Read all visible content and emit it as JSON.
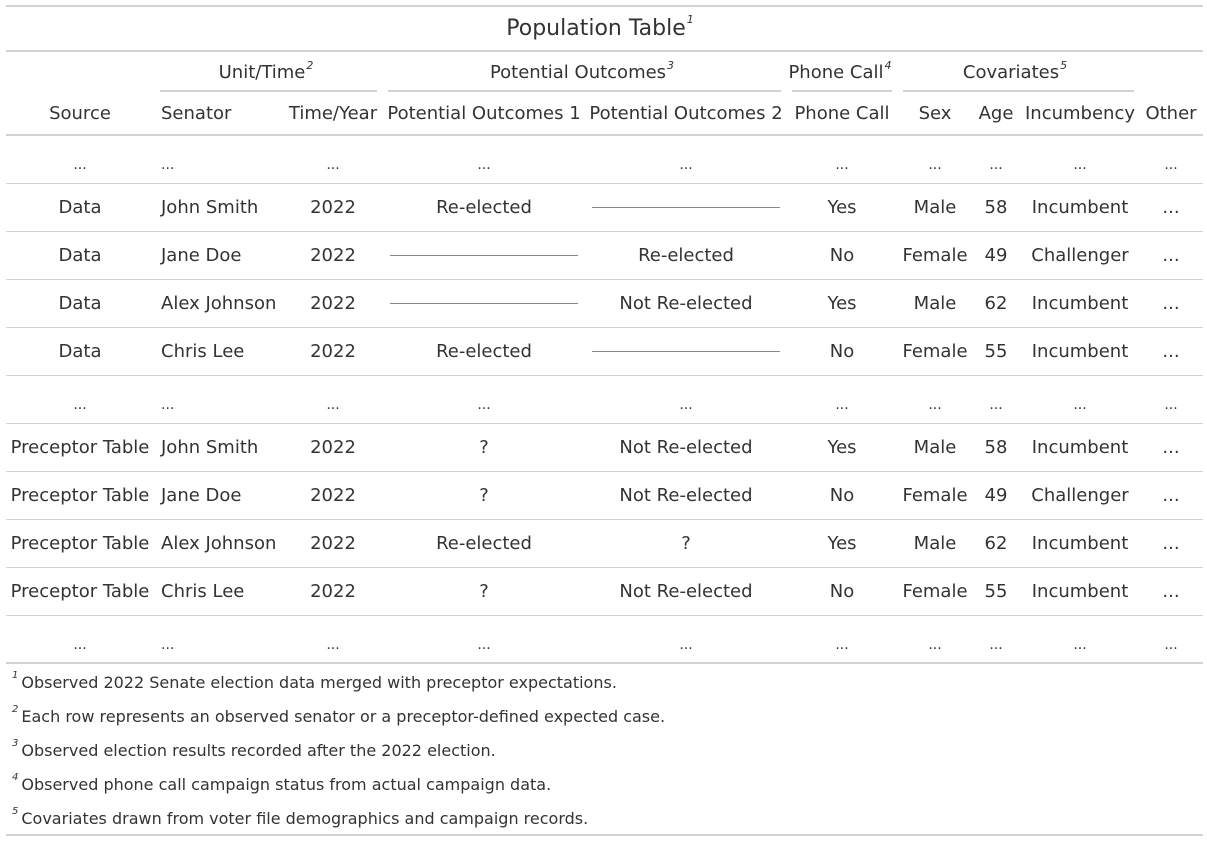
{
  "title": "Population Table",
  "title_note": "1",
  "spanners": [
    {
      "label": "Unit/Time",
      "note": "2"
    },
    {
      "label": "Potential Outcomes",
      "note": "3"
    },
    {
      "label": "Phone Call",
      "note": "4"
    },
    {
      "label": "Covariates",
      "note": "5"
    }
  ],
  "columns": [
    "Source",
    "Senator",
    "Time/Year",
    "Potential Outcomes 1",
    "Potential Outcomes 2",
    "Phone Call",
    "Sex",
    "Age",
    "Incumbency",
    "Other"
  ],
  "rows": [
    [
      "...",
      "...",
      "...",
      "...",
      "...",
      "...",
      "...",
      "...",
      "...",
      "..."
    ],
    [
      "Data",
      "John Smith",
      "2022",
      "Re-elected",
      "",
      "Yes",
      "Male",
      "58",
      "Incumbent",
      "..."
    ],
    [
      "Data",
      "Jane Doe",
      "2022",
      "",
      "Re-elected",
      "No",
      "Female",
      "49",
      "Challenger",
      "..."
    ],
    [
      "Data",
      "Alex Johnson",
      "2022",
      "",
      "Not Re-elected",
      "Yes",
      "Male",
      "62",
      "Incumbent",
      "..."
    ],
    [
      "Data",
      "Chris Lee",
      "2022",
      "Re-elected",
      "",
      "No",
      "Female",
      "55",
      "Incumbent",
      "..."
    ],
    [
      "...",
      "...",
      "...",
      "...",
      "...",
      "...",
      "...",
      "...",
      "...",
      "..."
    ],
    [
      "Preceptor Table",
      "John Smith",
      "2022",
      "?",
      "Not Re-elected",
      "Yes",
      "Male",
      "58",
      "Incumbent",
      "..."
    ],
    [
      "Preceptor Table",
      "Jane Doe",
      "2022",
      "?",
      "Not Re-elected",
      "No",
      "Female",
      "49",
      "Challenger",
      "..."
    ],
    [
      "Preceptor Table",
      "Alex Johnson",
      "2022",
      "Re-elected",
      "?",
      "Yes",
      "Male",
      "62",
      "Incumbent",
      "..."
    ],
    [
      "Preceptor Table",
      "Chris Lee",
      "2022",
      "?",
      "Not Re-elected",
      "No",
      "Female",
      "55",
      "Incumbent",
      "..."
    ],
    [
      "...",
      "...",
      "...",
      "...",
      "...",
      "...",
      "...",
      "...",
      "...",
      "..."
    ]
  ],
  "footnotes": [
    {
      "mark": "1",
      "text": "Observed 2022 Senate election data merged with preceptor expectations."
    },
    {
      "mark": "2",
      "text": "Each row represents an observed senator or a preceptor-defined expected case."
    },
    {
      "mark": "3",
      "text": "Observed election results recorded after the 2022 election."
    },
    {
      "mark": "4",
      "text": "Observed phone call campaign status from actual campaign data."
    },
    {
      "mark": "5",
      "text": "Covariates drawn from voter file demographics and campaign records."
    }
  ],
  "colors": {
    "text": "#333333",
    "rule": "#d3d3d3",
    "empty_line": "#888888"
  }
}
